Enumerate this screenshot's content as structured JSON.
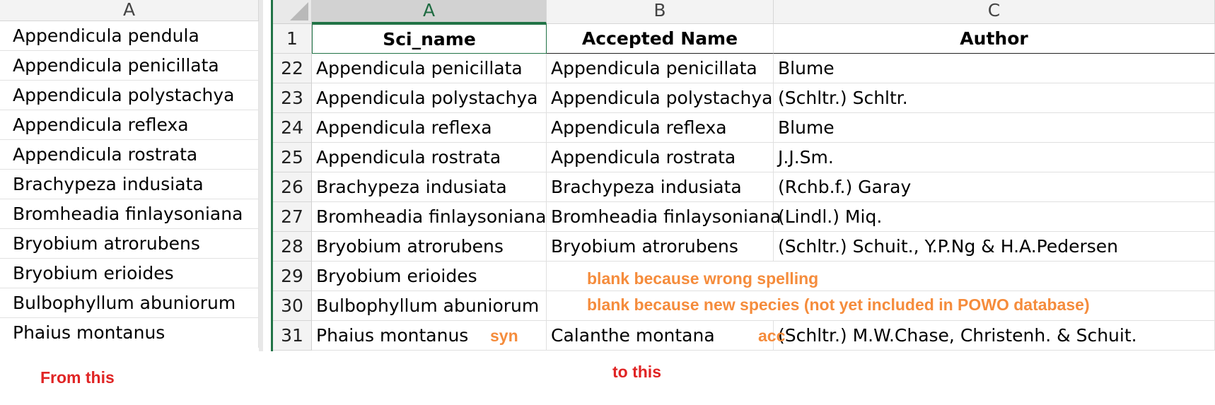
{
  "left_sheet": {
    "column_header": "A",
    "rows": [
      "Appendicula pendula",
      "Appendicula penicillata",
      "Appendicula polystachya",
      "Appendicula reflexa",
      "Appendicula rostrata",
      "Brachypeza indusiata",
      "Bromheadia finlaysoniana",
      "Bryobium atrorubens",
      "Bryobium erioides",
      "Bulbophyllum abuniorum",
      "Phaius montanus"
    ]
  },
  "right_sheet": {
    "column_headers": [
      "A",
      "B",
      "C"
    ],
    "header_row": {
      "num": "1",
      "cells": [
        "Sci_name",
        "Accepted Name",
        "Author"
      ]
    },
    "rows": [
      {
        "num": "22",
        "cells": [
          "Appendicula penicillata",
          "Appendicula penicillata",
          "Blume"
        ]
      },
      {
        "num": "23",
        "cells": [
          "Appendicula polystachya",
          "Appendicula polystachya",
          "(Schltr.) Schltr."
        ]
      },
      {
        "num": "24",
        "cells": [
          "Appendicula reflexa",
          "Appendicula reflexa",
          "Blume"
        ]
      },
      {
        "num": "25",
        "cells": [
          "Appendicula rostrata",
          "Appendicula rostrata",
          "J.J.Sm."
        ]
      },
      {
        "num": "26",
        "cells": [
          "Brachypeza indusiata",
          "Brachypeza indusiata",
          "(Rchb.f.) Garay"
        ]
      },
      {
        "num": "27",
        "cells": [
          "Bromheadia finlaysoniana",
          "Bromheadia finlaysoniana",
          "(Lindl.) Miq."
        ]
      },
      {
        "num": "28",
        "cells": [
          "Bryobium atrorubens",
          "Bryobium atrorubens",
          "(Schltr.) Schuit., Y.P.Ng & H.A.Pedersen"
        ]
      },
      {
        "num": "29",
        "cells": [
          "Bryobium erioides",
          "",
          ""
        ]
      },
      {
        "num": "30",
        "cells": [
          "Bulbophyllum abuniorum",
          "",
          ""
        ]
      },
      {
        "num": "31",
        "cells": [
          "Phaius montanus",
          "Calanthe montana",
          "(Schltr.) M.W.Chase, Christenh. & Schuit."
        ]
      }
    ]
  },
  "annotations": {
    "wrong_spelling": "blank because wrong spelling",
    "new_species": "blank because new species (not yet included in POWO database)",
    "syn": "syn",
    "acc": "acc"
  },
  "captions": {
    "from": "From this",
    "to": "to this"
  },
  "colors": {
    "annotation": "#f58c3c",
    "caption": "#e02424",
    "selection": "#217346"
  }
}
